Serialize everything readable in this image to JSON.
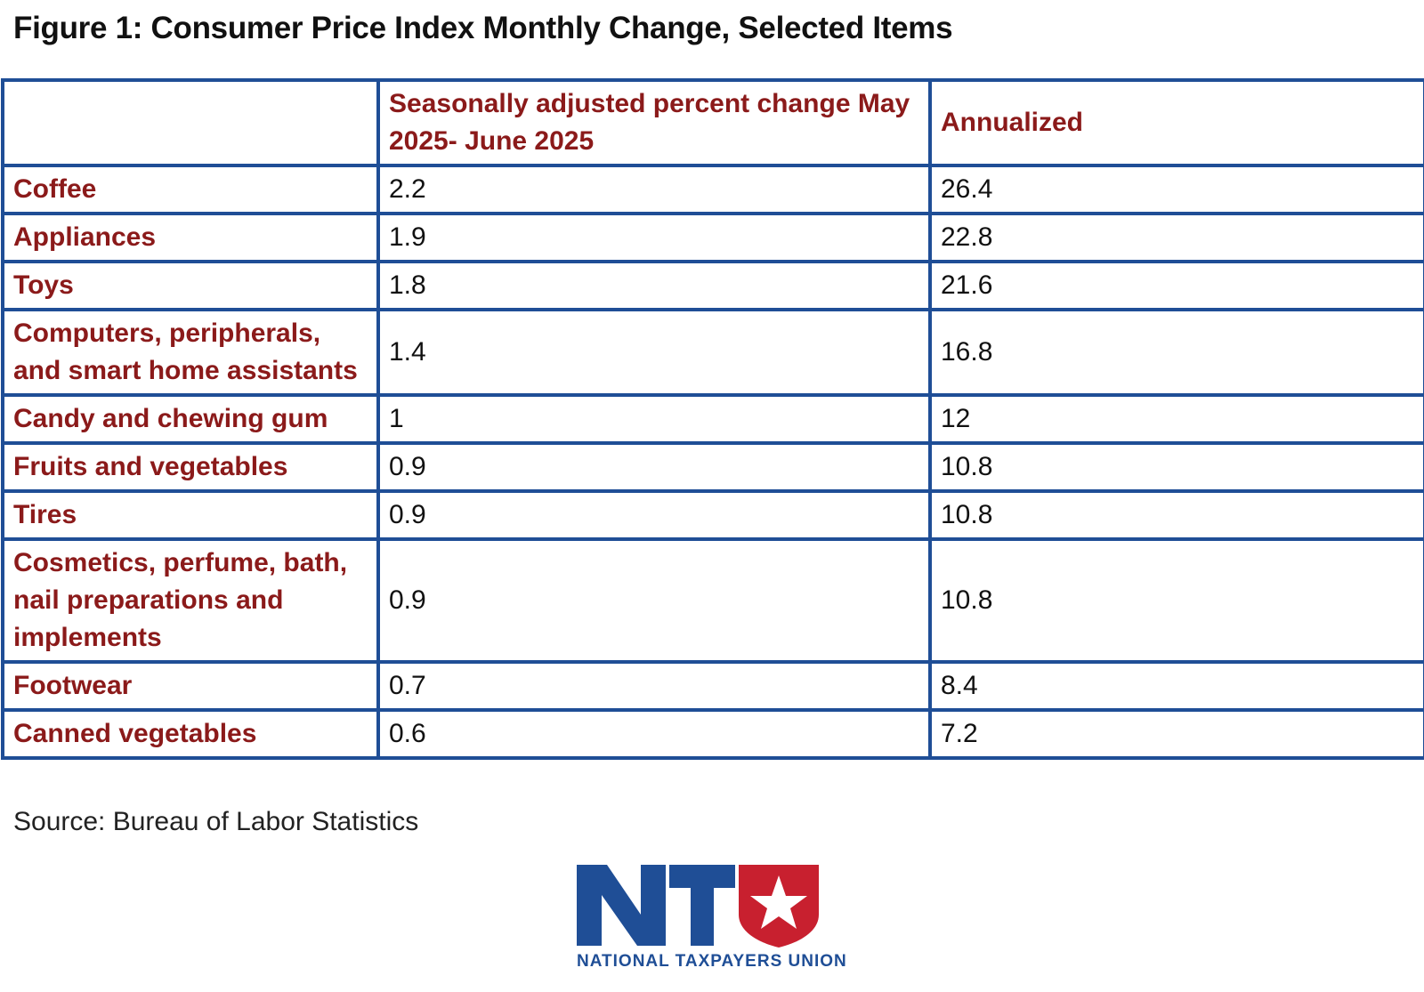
{
  "title": "Figure 1: Consumer Price Index Monthly Change, Selected Items",
  "source": "Source: Bureau of Labor Statistics",
  "logo": {
    "letters": "NTU",
    "text": "NATIONAL TAXPAYERS UNION",
    "icon": "star-shield-icon"
  },
  "colors": {
    "border": "#1f4e96",
    "label": "#8b1a1a",
    "logo_blue": "#1f4e96",
    "logo_red": "#c8202f"
  },
  "chart_data": {
    "type": "table",
    "title": "Figure 1: Consumer Price Index Monthly Change, Selected Items",
    "columns": [
      "",
      "Seasonally adjusted percent change May 2025- June 2025",
      "Annualized"
    ],
    "rows": [
      {
        "item": "Coffee",
        "monthly": "2.2",
        "annualized": "26.4"
      },
      {
        "item": "Appliances",
        "monthly": "1.9",
        "annualized": "22.8"
      },
      {
        "item": "Toys",
        "monthly": "1.8",
        "annualized": "21.6"
      },
      {
        "item": "Computers, peripherals, and smart home assistants",
        "monthly": "1.4",
        "annualized": "16.8"
      },
      {
        "item": "Candy and chewing gum",
        "monthly": "1",
        "annualized": "12"
      },
      {
        "item": "Fruits and vegetables",
        "monthly": "0.9",
        "annualized": "10.8"
      },
      {
        "item": "Tires",
        "monthly": "0.9",
        "annualized": "10.8"
      },
      {
        "item": "Cosmetics, perfume, bath, nail preparations and implements",
        "monthly": "0.9",
        "annualized": "10.8"
      },
      {
        "item": "Footwear",
        "monthly": "0.7",
        "annualized": "8.4"
      },
      {
        "item": "Canned vegetables",
        "monthly": "0.6",
        "annualized": "7.2"
      }
    ]
  }
}
